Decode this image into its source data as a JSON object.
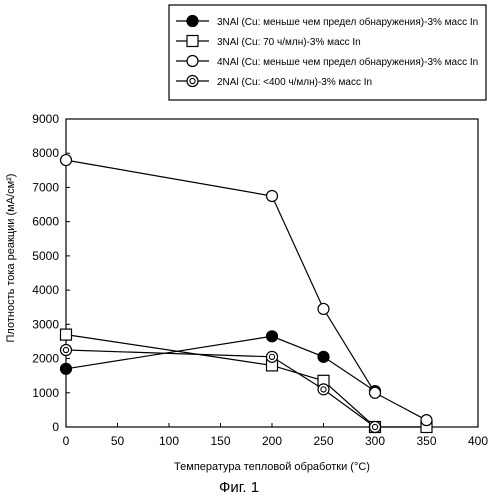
{
  "chart_data": {
    "type": "line",
    "xlabel": "Температура тепловой обработки (°C)",
    "ylabel": "Плотность тока реакции (мА/см²)",
    "xlim": [
      0,
      400
    ],
    "ylim": [
      0,
      9000
    ],
    "xticks": [
      0,
      50,
      100,
      150,
      200,
      250,
      300,
      350,
      400
    ],
    "yticks": [
      0,
      1000,
      2000,
      3000,
      4000,
      5000,
      6000,
      7000,
      8000,
      9000
    ],
    "grid": false,
    "legend_position": "top-right",
    "series": [
      {
        "name": "3NAl (Cu: меньше чем предел обнаружения)-3% масс In",
        "marker": "filled-circle",
        "color": "#000000",
        "x": [
          0,
          200,
          250,
          300
        ],
        "y": [
          1700,
          2650,
          2050,
          1050
        ]
      },
      {
        "name": "3NAl (Cu: 70 ч/млн)-3% масс In",
        "marker": "open-square",
        "color": "#000000",
        "x": [
          0,
          200,
          250,
          300,
          350
        ],
        "y": [
          2700,
          1800,
          1350,
          0,
          0
        ]
      },
      {
        "name": "4NAl (Cu: меньше чем предел обнаружения)-3% масс In",
        "marker": "open-circle",
        "color": "#000000",
        "x": [
          0,
          200,
          250,
          300,
          350
        ],
        "y": [
          7800,
          6750,
          3450,
          1000,
          200
        ]
      },
      {
        "name": "2NAl (Cu: <400 ч/млн)-3% масс In",
        "marker": "double-circle",
        "color": "#000000",
        "x": [
          0,
          200,
          250,
          300
        ],
        "y": [
          2250,
          2050,
          1100,
          0
        ]
      }
    ]
  },
  "caption": "Фиг. 1"
}
